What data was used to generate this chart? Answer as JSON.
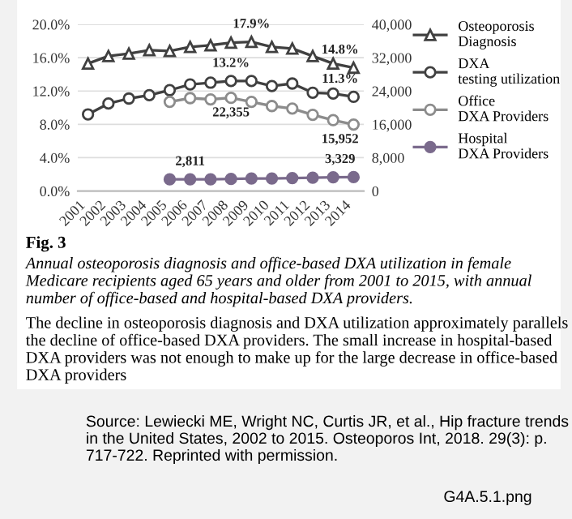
{
  "chart_data": {
    "type": "line",
    "categories": [
      "2001",
      "2002",
      "2003",
      "2004",
      "2005",
      "2006",
      "2007",
      "2008",
      "2009",
      "2010",
      "2011",
      "2012",
      "2013",
      "2014"
    ],
    "series": [
      {
        "name": "Osteoporosis Diagnosis",
        "color": "#404040",
        "marker": "triangle",
        "values": [
          15.3,
          16.2,
          16.5,
          16.9,
          16.8,
          17.3,
          17.5,
          17.8,
          17.9,
          17.3,
          17.1,
          16.2,
          15.3,
          14.8
        ],
        "value_labels": [
          null,
          null,
          null,
          null,
          null,
          null,
          null,
          null,
          "17.9%",
          null,
          null,
          null,
          null,
          "14.8%"
        ]
      },
      {
        "name": "DXA testing utilization",
        "color": "#404040",
        "marker": "circle",
        "values": [
          9.2,
          10.5,
          11.1,
          11.5,
          12.1,
          12.8,
          13.0,
          13.2,
          13.2,
          12.6,
          12.9,
          11.8,
          11.7,
          11.3
        ],
        "value_labels": [
          null,
          null,
          null,
          null,
          null,
          null,
          null,
          "13.2%",
          null,
          null,
          null,
          null,
          null,
          "11.3%"
        ]
      },
      {
        "name": "Office DXA Providers",
        "color": "#8c8c8c",
        "marker": "circle",
        "axis": "y2",
        "values": [
          null,
          null,
          null,
          null,
          21400,
          22300,
          22000,
          22355,
          21400,
          20400,
          19800,
          18300,
          17000,
          15952
        ],
        "value_labels": [
          null,
          null,
          null,
          null,
          null,
          null,
          null,
          "22,355",
          null,
          null,
          null,
          null,
          null,
          "15,952"
        ]
      },
      {
        "name": "Hospital DXA Providers",
        "color": "#7a6a8c",
        "marker": "circle",
        "axis": "y2",
        "values": [
          null,
          null,
          null,
          null,
          2800,
          2811,
          2800,
          2900,
          3000,
          3000,
          3100,
          3200,
          3300,
          3329
        ],
        "value_labels": [
          null,
          null,
          null,
          null,
          null,
          "2,811",
          null,
          null,
          null,
          null,
          null,
          null,
          null,
          "3,329"
        ]
      }
    ],
    "ylim": [
      0,
      20
    ],
    "yticks": [
      {
        "value": 0,
        "label": "0.0%"
      },
      {
        "value": 4,
        "label": "4.0%"
      },
      {
        "value": 8,
        "label": "8.0%"
      },
      {
        "value": 12,
        "label": "12.0%"
      },
      {
        "value": 16,
        "label": "16.0%"
      },
      {
        "value": 20,
        "label": "20.0%"
      }
    ],
    "y2lim": [
      0,
      40000
    ],
    "y2ticks": [
      0,
      {
        "value": 8000,
        "label": "8,000"
      },
      {
        "value": 16000,
        "label": "16,000"
      },
      {
        "value": 24000,
        "label": "24,000"
      },
      {
        "value": 32000,
        "label": "32,000"
      },
      {
        "value": 40000,
        "label": "40,000"
      }
    ],
    "grid": "y",
    "legend": "right",
    "line_style": "solid",
    "annotations": [
      "Fig. 3",
      "Annual osteoporosis diagnosis and office-based DXA utilization in female Medicare recipients aged 65 years and older from 2001 to 2015, with annual number of office-based and hospital-based DXA providers.",
      "The decline in osteoporosis diagnosis and DXA utilization approximately parallels the decline of office-based DXA providers. The small increase in hospital-based DXA providers was not enough to make up for the large decrease in office-based DXA providers",
      "Source: Lewiecki ME, Wright NC, Curtis JR, et al., Hip fracture trends in the United States, 2002 to 2015. Osteoporos Int, 2018. 29(3): p. 717-722. Reprinted with permission.",
      "G4A.5.1.png"
    ]
  }
}
